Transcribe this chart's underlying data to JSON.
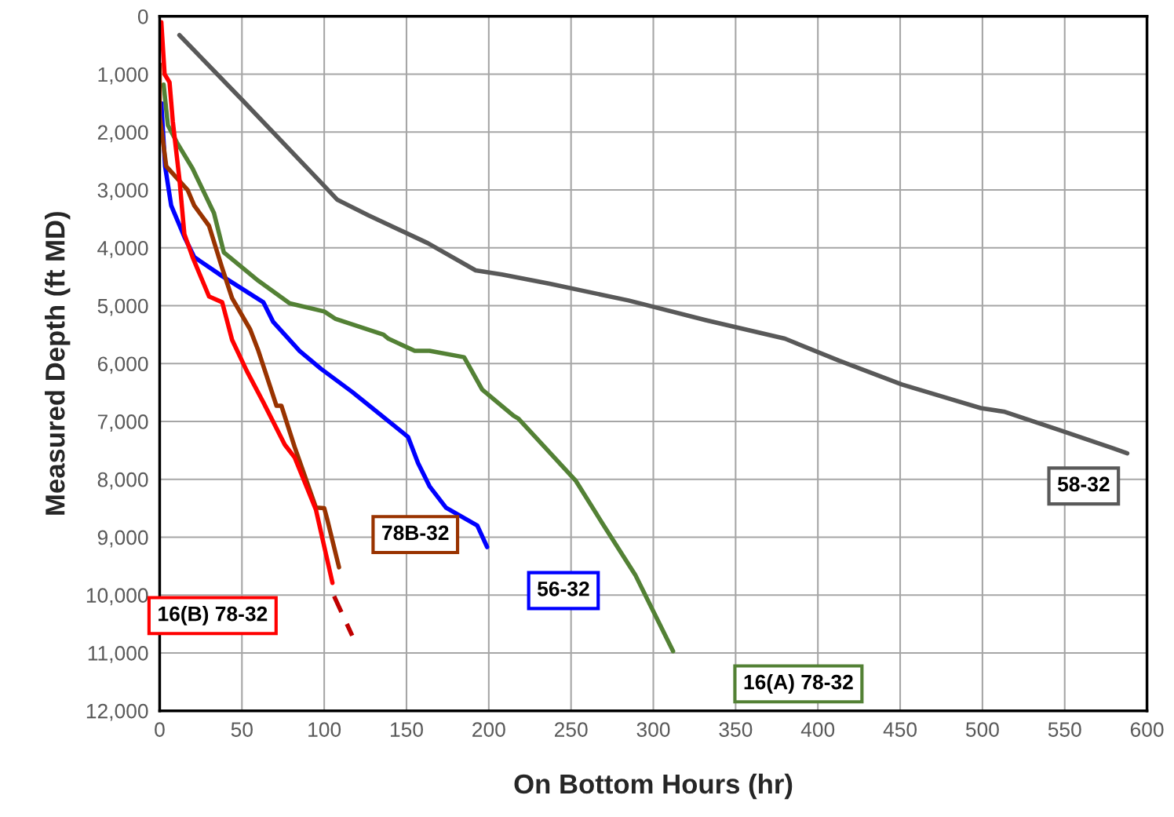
{
  "chart_data": {
    "type": "line",
    "xlabel": "On Bottom Hours (hr)",
    "ylabel": "Measured Depth (ft MD)",
    "xlim": [
      0,
      600
    ],
    "xticks": [
      0,
      50,
      100,
      150,
      200,
      250,
      300,
      350,
      400,
      450,
      500,
      550,
      600
    ],
    "ylim": [
      12000,
      0
    ],
    "yticks": [
      0,
      {
        "value": 1000,
        "label": "1,000"
      },
      {
        "value": 2000,
        "label": "2,000"
      },
      {
        "value": 3000,
        "label": "3,000"
      },
      {
        "value": 4000,
        "label": "4,000"
      },
      {
        "value": 5000,
        "label": "5,000"
      },
      {
        "value": 6000,
        "label": "6,000"
      },
      {
        "value": 7000,
        "label": "7,000"
      },
      {
        "value": 8000,
        "label": "8,000"
      },
      {
        "value": 9000,
        "label": "9,000"
      },
      {
        "value": 10000,
        "label": "10,000"
      },
      {
        "value": 11000,
        "label": "11,000"
      },
      {
        "value": 12000,
        "label": "12,000"
      }
    ],
    "grid": true,
    "legend": false,
    "marker": "none",
    "line_style": "solid",
    "series": [
      {
        "name": "58-32",
        "color": "#595959",
        "x": [
          12,
          50,
          100,
          108,
          127,
          163,
          192,
          208,
          237,
          285,
          332,
          380,
          413,
          451,
          499,
          513,
          547,
          580,
          588
        ],
        "values": [
          325,
          1440,
          2930,
          3170,
          3440,
          3920,
          4390,
          4460,
          4620,
          4910,
          5250,
          5570,
          5950,
          6360,
          6770,
          6830,
          7150,
          7470,
          7550
        ]
      },
      {
        "name": "16(A) 78-32",
        "color": "#538135",
        "x": [
          2.4,
          5,
          10.5,
          20,
          33,
          39,
          60,
          79,
          100,
          107,
          136,
          139,
          155,
          164,
          185,
          196,
          215,
          218,
          253,
          269,
          289,
          312
        ],
        "values": [
          1180,
          1880,
          2180,
          2630,
          3400,
          4080,
          4570,
          4960,
          5100,
          5230,
          5500,
          5570,
          5780,
          5780,
          5890,
          6450,
          6900,
          6950,
          8030,
          8760,
          9650,
          10970
        ]
      },
      {
        "name": "56-32",
        "color": "#0000ff",
        "x": [
          1,
          3.3,
          7,
          15,
          21,
          38,
          63,
          69,
          85,
          98,
          117,
          145,
          151,
          157,
          164,
          174,
          193,
          199
        ],
        "values": [
          1500,
          2590,
          3270,
          3810,
          4160,
          4490,
          4940,
          5280,
          5780,
          6090,
          6490,
          7130,
          7270,
          7720,
          8120,
          8490,
          8800,
          9170
        ]
      },
      {
        "name": "78B-32",
        "color": "#993300",
        "x": [
          0,
          0,
          4,
          17,
          21,
          30,
          38,
          44,
          55,
          60,
          71,
          74,
          82,
          95,
          100,
          102,
          109
        ],
        "values": [
          830,
          1720,
          2590,
          3000,
          3270,
          3620,
          4350,
          4870,
          5410,
          5780,
          6730,
          6730,
          7440,
          8490,
          8500,
          8710,
          9520
        ]
      },
      {
        "name": "16(B) 78-32",
        "color": "#ff0000",
        "x": [
          1,
          3,
          6,
          8,
          12,
          15,
          20,
          30,
          38,
          44,
          53,
          63,
          76,
          82,
          95,
          105
        ],
        "values": [
          100,
          1000,
          1140,
          1820,
          2810,
          3760,
          4160,
          4840,
          4940,
          5590,
          6130,
          6670,
          7400,
          7620,
          8530,
          9790
        ]
      },
      {
        "color": "#c00000",
        "line_style": "dashed",
        "x": [
          106,
          117
        ],
        "values": [
          10020,
          10700
        ]
      }
    ]
  }
}
